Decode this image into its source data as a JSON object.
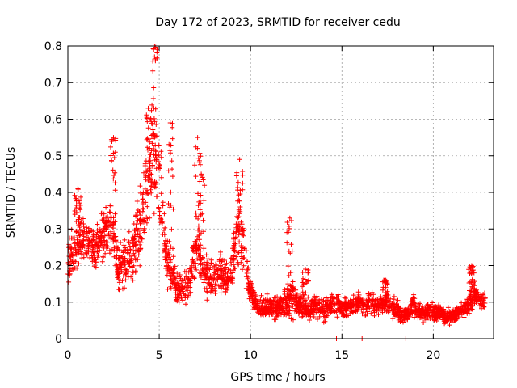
{
  "chart_data": {
    "type": "scatter",
    "title": "Day 172 of 2023, SRMTID for receiver cedu",
    "xlabel": "GPS time / hours",
    "ylabel": "SRMTID / TECUs",
    "xlim": [
      0,
      23.3
    ],
    "ylim": [
      0,
      0.8
    ],
    "xticks": [
      0,
      5,
      10,
      15,
      20
    ],
    "xtick_labels": [
      "0",
      "5",
      "10",
      "15",
      "20"
    ],
    "yticks": [
      0,
      0.1,
      0.2,
      0.3,
      0.4,
      0.5,
      0.6,
      0.7,
      0.8
    ],
    "ytick_labels": [
      "0",
      "0.1",
      "0.2",
      "0.3",
      "0.4",
      "0.5",
      "0.6",
      "0.7",
      "0.8"
    ],
    "grid": true,
    "marker": "+",
    "series_color": "#ff0000",
    "series": [
      {
        "name": "SRMTID",
        "note": "dense point cloud; representative envelope (time in hours, value in TECU)",
        "profile": [
          [
            0.0,
            0.2,
            0.09
          ],
          [
            0.3,
            0.24,
            0.09
          ],
          [
            0.6,
            0.27,
            0.1
          ],
          [
            0.9,
            0.27,
            0.09
          ],
          [
            1.2,
            0.26,
            0.09
          ],
          [
            1.5,
            0.25,
            0.09
          ],
          [
            1.8,
            0.27,
            0.09
          ],
          [
            2.1,
            0.3,
            0.1
          ],
          [
            2.4,
            0.33,
            0.13
          ],
          [
            2.7,
            0.2,
            0.09
          ],
          [
            3.0,
            0.2,
            0.09
          ],
          [
            3.3,
            0.22,
            0.1
          ],
          [
            3.6,
            0.23,
            0.11
          ],
          [
            3.9,
            0.3,
            0.15
          ],
          [
            4.2,
            0.38,
            0.18
          ],
          [
            4.5,
            0.45,
            0.2
          ],
          [
            4.8,
            0.5,
            0.22
          ],
          [
            5.1,
            0.38,
            0.18
          ],
          [
            5.4,
            0.22,
            0.1
          ],
          [
            5.7,
            0.18,
            0.08
          ],
          [
            6.0,
            0.13,
            0.06
          ],
          [
            6.3,
            0.13,
            0.06
          ],
          [
            6.6,
            0.15,
            0.07
          ],
          [
            6.9,
            0.22,
            0.08
          ],
          [
            7.2,
            0.24,
            0.09
          ],
          [
            7.5,
            0.17,
            0.08
          ],
          [
            7.8,
            0.16,
            0.07
          ],
          [
            8.1,
            0.17,
            0.07
          ],
          [
            8.4,
            0.18,
            0.07
          ],
          [
            8.7,
            0.16,
            0.07
          ],
          [
            9.0,
            0.2,
            0.09
          ],
          [
            9.3,
            0.3,
            0.13
          ],
          [
            9.6,
            0.25,
            0.1
          ],
          [
            9.9,
            0.15,
            0.05
          ],
          [
            10.2,
            0.1,
            0.04
          ],
          [
            10.5,
            0.08,
            0.04
          ],
          [
            10.8,
            0.09,
            0.04
          ],
          [
            11.1,
            0.09,
            0.04
          ],
          [
            11.4,
            0.08,
            0.04
          ],
          [
            11.7,
            0.09,
            0.04
          ],
          [
            12.0,
            0.1,
            0.05
          ],
          [
            12.3,
            0.12,
            0.08
          ],
          [
            12.6,
            0.09,
            0.04
          ],
          [
            12.9,
            0.09,
            0.04
          ],
          [
            13.2,
            0.08,
            0.04
          ],
          [
            13.5,
            0.09,
            0.04
          ],
          [
            13.8,
            0.08,
            0.04
          ],
          [
            14.1,
            0.08,
            0.04
          ],
          [
            14.4,
            0.09,
            0.04
          ],
          [
            14.7,
            0.09,
            0.05
          ],
          [
            15.0,
            0.08,
            0.04
          ],
          [
            15.3,
            0.09,
            0.04
          ],
          [
            15.6,
            0.09,
            0.04
          ],
          [
            15.9,
            0.1,
            0.04
          ],
          [
            16.2,
            0.09,
            0.04
          ],
          [
            16.5,
            0.1,
            0.04
          ],
          [
            16.8,
            0.09,
            0.04
          ],
          [
            17.1,
            0.09,
            0.04
          ],
          [
            17.4,
            0.1,
            0.04
          ],
          [
            17.7,
            0.09,
            0.04
          ],
          [
            18.0,
            0.08,
            0.04
          ],
          [
            18.3,
            0.06,
            0.03
          ],
          [
            18.6,
            0.07,
            0.03
          ],
          [
            18.9,
            0.09,
            0.04
          ],
          [
            19.2,
            0.08,
            0.04
          ],
          [
            19.5,
            0.07,
            0.03
          ],
          [
            19.8,
            0.08,
            0.03
          ],
          [
            20.1,
            0.07,
            0.03
          ],
          [
            20.4,
            0.07,
            0.03
          ],
          [
            20.7,
            0.06,
            0.03
          ],
          [
            21.0,
            0.06,
            0.03
          ],
          [
            21.3,
            0.07,
            0.03
          ],
          [
            21.6,
            0.08,
            0.03
          ],
          [
            21.9,
            0.09,
            0.04
          ],
          [
            22.2,
            0.12,
            0.05
          ],
          [
            22.5,
            0.11,
            0.04
          ],
          [
            22.8,
            0.1,
            0.04
          ]
        ],
        "peaks": [
          [
            0.55,
            0.41
          ],
          [
            2.5,
            0.55
          ],
          [
            4.4,
            0.63
          ],
          [
            4.75,
            0.8
          ],
          [
            5.6,
            0.59
          ],
          [
            7.1,
            0.55
          ],
          [
            7.3,
            0.45
          ],
          [
            9.4,
            0.49
          ],
          [
            12.15,
            0.33
          ],
          [
            13.0,
            0.19
          ],
          [
            17.4,
            0.16
          ],
          [
            22.1,
            0.2
          ]
        ],
        "zero_points": [
          14.7,
          16.1,
          18.5
        ],
        "x_range": [
          0.0,
          22.85
        ]
      }
    ]
  }
}
